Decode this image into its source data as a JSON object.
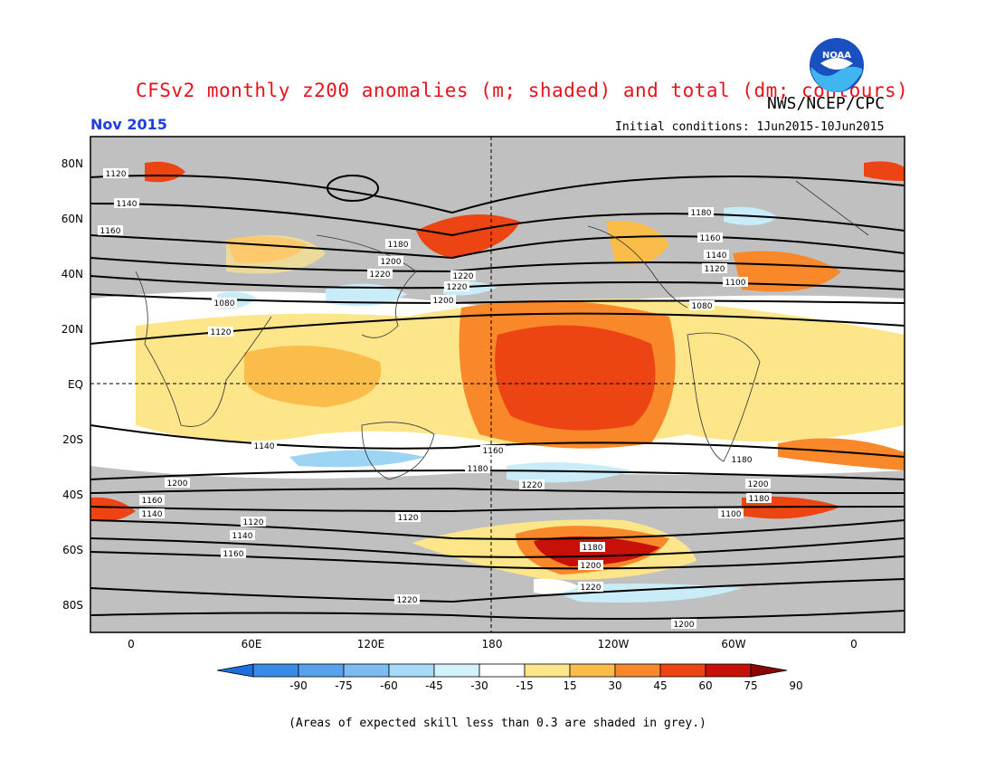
{
  "header": {
    "title": "CFSv2 monthly z200 anomalies (m; shaded) and total (dm; contours)",
    "org": "NWS/NCEP/CPC",
    "month": "Nov 2015",
    "initial_conditions": "Initial conditions: 1Jun2015-10Jun2015",
    "logo_text": "NOAA"
  },
  "map": {
    "lat_labels": [
      "80N",
      "60N",
      "40N",
      "20N",
      "EQ",
      "20S",
      "40S",
      "60S",
      "80S"
    ],
    "lon_labels": [
      "0",
      "60E",
      "120E",
      "180",
      "120W",
      "60W",
      "0"
    ],
    "contour_labels": [
      "1120",
      "1140",
      "1160",
      "1180",
      "1200",
      "1220",
      "1220",
      "1220",
      "1200",
      "1180",
      "1160",
      "1140",
      "1120",
      "1100",
      "1080",
      "1080",
      "1120",
      "1140",
      "1160",
      "1180",
      "1200",
      "1220",
      "1200",
      "1180",
      "1160",
      "1140",
      "1120",
      "1100",
      "1120",
      "1140",
      "1160",
      "1180",
      "1200",
      "1220",
      "1220",
      "1200",
      "1180",
      "1160"
    ],
    "colors": {
      "skill_grey": "#c0c0c0",
      "neutral": "#ffffff",
      "pos_15_30": "#fde58a",
      "pos_30_45": "#fbbd49",
      "pos_45_60": "#f8882a",
      "pos_60_75": "#ec4412",
      "pos_75_90": "#c71008",
      "neg_15_30": "#c8ecf8",
      "neg_30_45": "#9cd4f4"
    }
  },
  "colorbar": {
    "labels": [
      "-90",
      "-75",
      "-60",
      "-45",
      "-30",
      "-15",
      "15",
      "30",
      "45",
      "60",
      "75",
      "90"
    ],
    "colors": [
      "#1d6fe0",
      "#3a8ae8",
      "#58a1ee",
      "#7cbcf2",
      "#a6daf6",
      "#d4f2f9",
      "#ffffff",
      "#fde58a",
      "#fbbd49",
      "#f8882a",
      "#ec4412",
      "#c71008",
      "#8a0604"
    ]
  },
  "footnote": "(Areas of expected skill less than 0.3 are shaded in grey.)"
}
